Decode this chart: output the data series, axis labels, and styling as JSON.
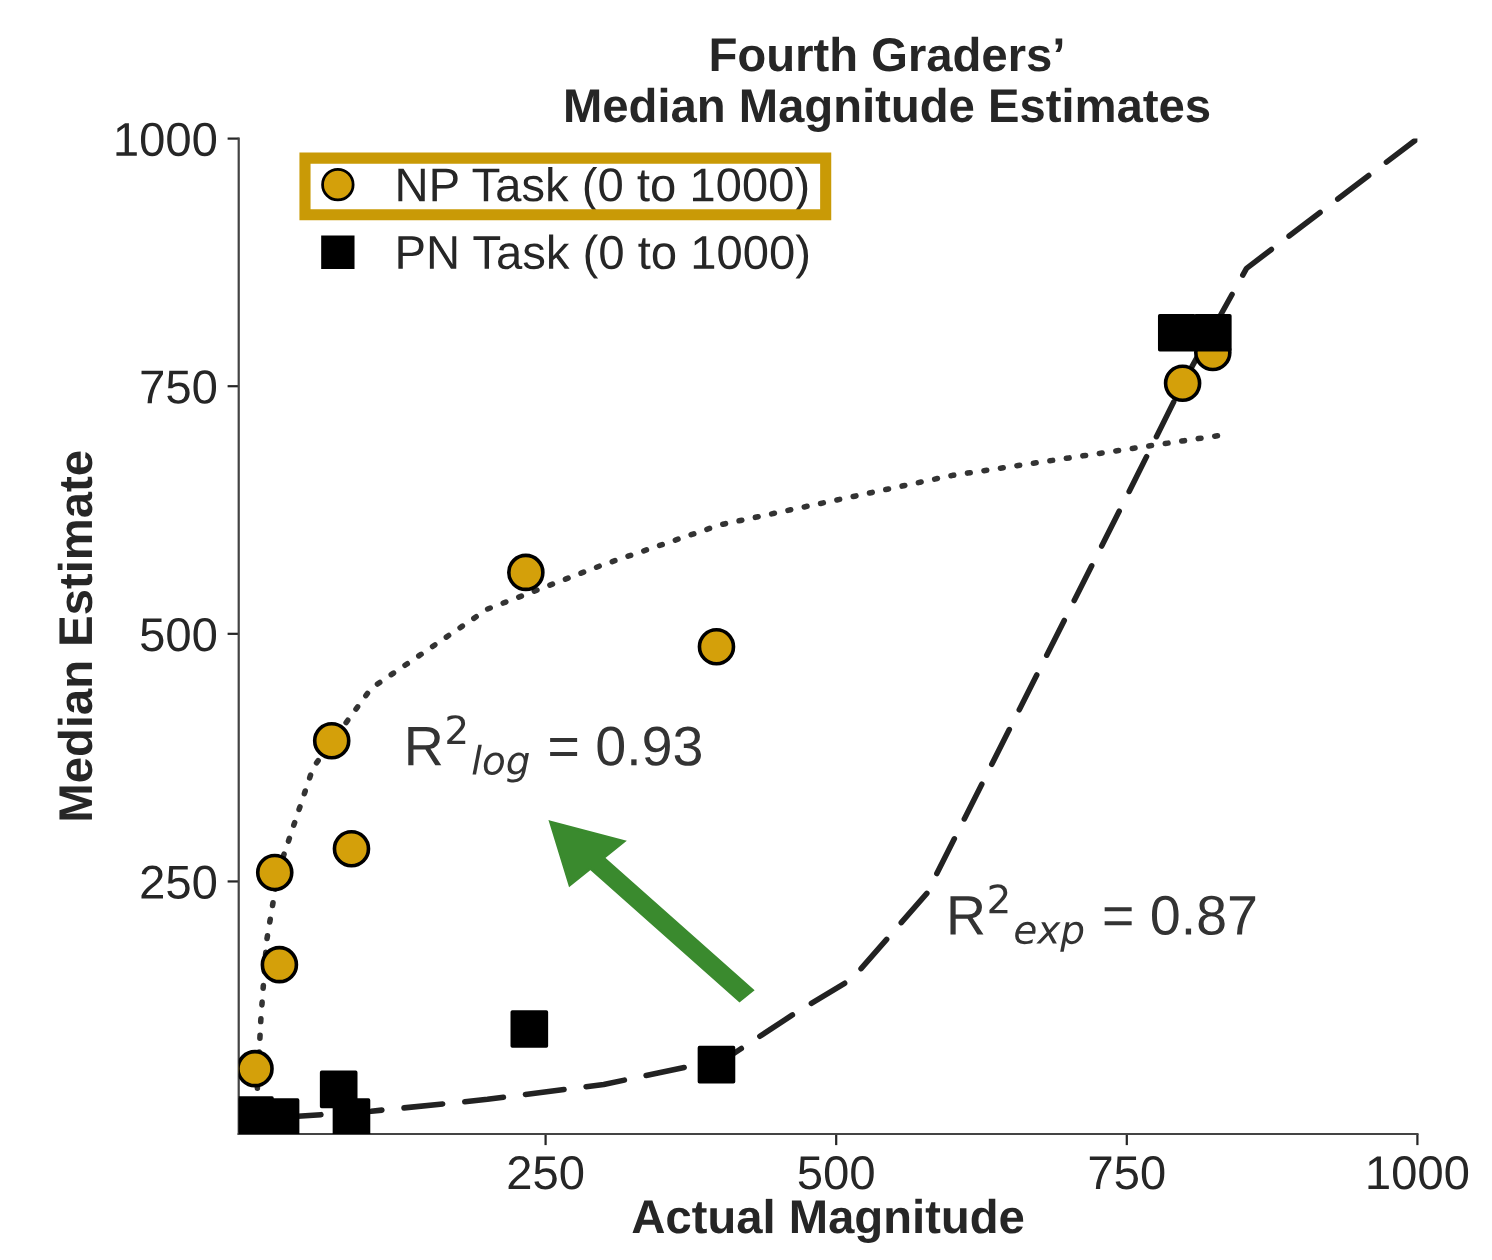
{
  "chart_data": {
    "type": "scatter",
    "title": "Fourth Graders’\nMedian Magnitude Estimates",
    "xlabel": "Actual Magnitude",
    "ylabel": "Median Estimate",
    "xlim": [
      -14,
      1000
    ],
    "ylim": [
      -5,
      1000
    ],
    "xticks": [
      250,
      500,
      750,
      1000
    ],
    "yticks": [
      250,
      500,
      750,
      1000
    ],
    "grid": false,
    "legend": "top left",
    "series": [
      {
        "name": "NP Task (0 to 1000)",
        "marker": "circle",
        "color": "#d4a00a",
        "x": [
          0,
          17,
          21,
          66,
          83,
          233,
          397,
          798,
          824
        ],
        "values": [
          61,
          259,
          166,
          392,
          283,
          562,
          487,
          753,
          784
        ]
      },
      {
        "name": "PN Task (0 to 1000)",
        "marker": "square",
        "color": "#000000",
        "x": [
          0,
          22,
          72,
          83,
          236,
          397,
          793,
          824
        ],
        "values": [
          14,
          12,
          40,
          12,
          101,
          65,
          804,
          804
        ]
      },
      {
        "type": "line",
        "line_style": "dotted",
        "color": "#333333",
        "x": [
          2,
          5,
          10,
          20,
          50,
          100,
          200,
          300,
          400,
          600,
          828
        ],
        "values": [
          40,
          110,
          190,
          260,
          365,
          445,
          525,
          570,
          610,
          660,
          700
        ]
      },
      {
        "type": "line",
        "line_style": "dashed",
        "color": "#222222",
        "x": [
          0,
          100,
          200,
          300,
          405,
          462,
          514,
          578,
          759,
          800,
          853,
          1000
        ],
        "values": [
          10,
          18,
          30,
          45,
          71,
          115,
          152,
          238,
          660,
          757,
          869,
          1000
        ]
      }
    ],
    "annotations": [
      "R$^{2}$$_{log}$ = 0.93",
      "R$^{2}$$_{exp}$ = 0.87"
    ]
  }
}
